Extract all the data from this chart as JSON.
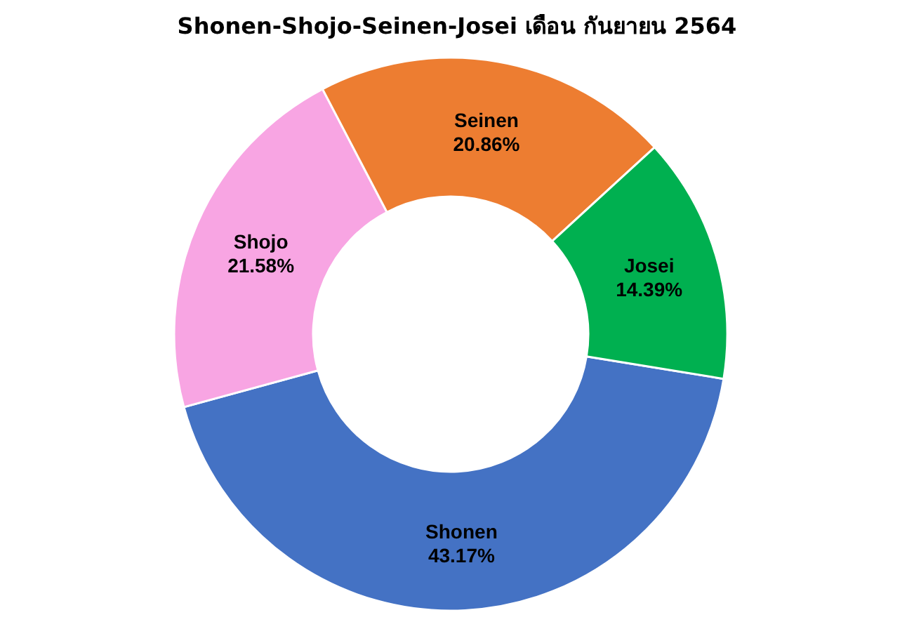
{
  "chart_data": {
    "type": "donut",
    "title": "Shonen-Shojo-Seinen-Josei เดือน กันยายน 2564",
    "categories": [
      "Shonen",
      "Shojo",
      "Seinen",
      "Josei"
    ],
    "values": [
      43.17,
      21.58,
      20.86,
      14.39
    ],
    "value_labels": [
      "43.17%",
      "21.58%",
      "20.86%",
      "14.39%"
    ],
    "colors": [
      "#4472c4",
      "#f8a5e3",
      "#ed7d31",
      "#00b050"
    ]
  }
}
